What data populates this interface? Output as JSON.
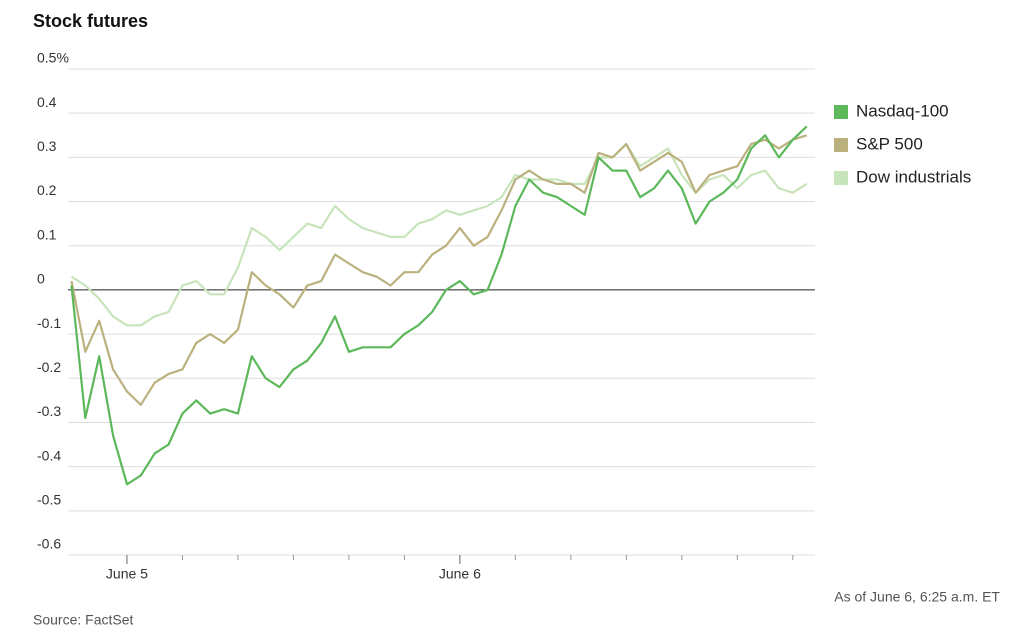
{
  "chart_data": {
    "type": "line",
    "title": "Stock futures",
    "source": "Source: FactSet",
    "note": "As of June 6, 6:25 a.m. ET",
    "x": [
      -4,
      -3,
      -2,
      -1,
      0,
      1,
      2,
      3,
      4,
      5,
      6,
      7,
      8,
      9,
      10,
      11,
      12,
      13,
      14,
      15,
      16,
      17,
      18,
      19,
      20,
      21,
      22,
      23,
      24,
      25,
      26,
      27,
      28,
      29,
      30,
      31,
      32,
      33,
      34,
      35,
      36,
      37,
      38,
      39,
      40,
      41,
      42,
      43,
      44,
      45,
      46,
      47,
      48,
      49
    ],
    "xlim": [
      -4.25,
      49.6
    ],
    "xticks": [
      {
        "value": 0,
        "label": "June 5"
      },
      {
        "value": 24,
        "label": "June 6"
      }
    ],
    "minor_xticks": [
      4,
      8,
      12,
      16,
      20,
      28,
      32,
      36,
      40,
      44,
      48
    ],
    "ylim": [
      -0.6,
      0.5
    ],
    "yticks": [
      {
        "value": 0.5,
        "label": "0.5%"
      },
      0.4,
      0.3,
      0.2,
      0.1,
      0,
      -0.1,
      -0.2,
      -0.3,
      -0.4,
      -0.5,
      -0.6
    ],
    "grid": true,
    "legend": "right",
    "series": [
      {
        "name": "Dow industrials",
        "color": "#c8e4bb",
        "values": [
          0.03,
          0.01,
          -0.02,
          -0.06,
          -0.08,
          -0.08,
          -0.06,
          -0.05,
          0.01,
          0.02,
          -0.01,
          -0.01,
          0.05,
          0.14,
          0.12,
          0.09,
          0.12,
          0.15,
          0.14,
          0.19,
          0.16,
          0.14,
          0.13,
          0.12,
          0.12,
          0.15,
          0.16,
          0.18,
          0.17,
          0.18,
          0.19,
          0.21,
          0.26,
          0.25,
          0.25,
          0.25,
          0.24,
          0.24,
          0.3,
          0.3,
          0.33,
          0.28,
          0.3,
          0.32,
          0.26,
          0.22,
          0.25,
          0.26,
          0.23,
          0.26,
          0.27,
          0.23,
          0.22,
          0.24
        ]
      },
      {
        "name": "S&P 500",
        "color": "#bbb17f",
        "values": [
          0.02,
          -0.14,
          -0.07,
          -0.18,
          -0.23,
          -0.26,
          -0.21,
          -0.19,
          -0.18,
          -0.12,
          -0.1,
          -0.12,
          -0.09,
          0.04,
          0.01,
          -0.01,
          -0.04,
          0.01,
          0.02,
          0.08,
          0.06,
          0.04,
          0.03,
          0.01,
          0.04,
          0.04,
          0.08,
          0.1,
          0.14,
          0.1,
          0.12,
          0.18,
          0.25,
          0.27,
          0.25,
          0.24,
          0.24,
          0.22,
          0.31,
          0.3,
          0.33,
          0.27,
          0.29,
          0.31,
          0.29,
          0.22,
          0.26,
          0.27,
          0.28,
          0.33,
          0.34,
          0.32,
          0.34,
          0.35
        ]
      },
      {
        "name": "Nasdaq-100",
        "color": "#5cb85a",
        "values": [
          0.01,
          -0.29,
          -0.15,
          -0.33,
          -0.44,
          -0.42,
          -0.37,
          -0.35,
          -0.28,
          -0.25,
          -0.28,
          -0.27,
          -0.28,
          -0.15,
          -0.2,
          -0.22,
          -0.18,
          -0.16,
          -0.12,
          -0.06,
          -0.14,
          -0.13,
          -0.13,
          -0.13,
          -0.1,
          -0.08,
          -0.05,
          0.0,
          0.02,
          -0.01,
          0.0,
          0.08,
          0.19,
          0.25,
          0.22,
          0.21,
          0.19,
          0.17,
          0.3,
          0.27,
          0.27,
          0.21,
          0.23,
          0.27,
          0.23,
          0.15,
          0.2,
          0.22,
          0.25,
          0.32,
          0.35,
          0.3,
          0.34,
          0.37
        ]
      }
    ]
  }
}
